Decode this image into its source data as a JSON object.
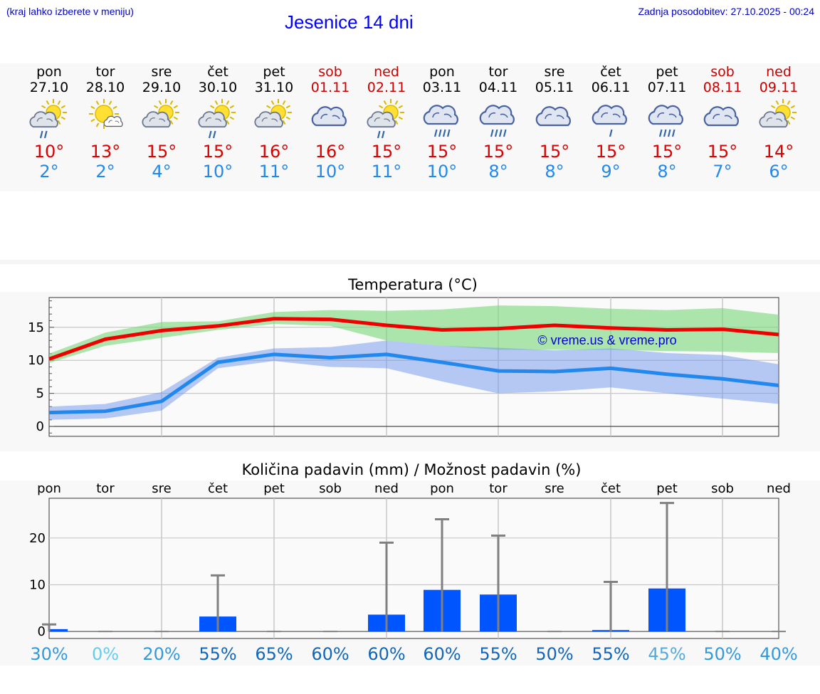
{
  "header": {
    "location_note": "(kraj lahko izberete v meniju)",
    "title": "Jesenice 14 dni",
    "last_update": "Zadnja posodobitev: 27.10.2025 - 00:24"
  },
  "colors": {
    "weekday": "#000000",
    "weekend": "#cc0000",
    "tmax": "#dd0000",
    "tmin": "#2288ee",
    "bar": "#0055ff"
  },
  "days": [
    {
      "name": "pon",
      "date": "27.10",
      "weekend": false,
      "icon": "sun-cloud-drizzle-icon",
      "tmax": "10°",
      "tmin": "2°"
    },
    {
      "name": "tor",
      "date": "28.10",
      "weekend": false,
      "icon": "sun-small-cloud-icon",
      "tmax": "13°",
      "tmin": "2°"
    },
    {
      "name": "sre",
      "date": "29.10",
      "weekend": false,
      "icon": "sun-cloud-icon",
      "tmax": "15°",
      "tmin": "4°"
    },
    {
      "name": "čet",
      "date": "30.10",
      "weekend": false,
      "icon": "sun-cloud-drizzle-icon",
      "tmax": "15°",
      "tmin": "10°"
    },
    {
      "name": "pet",
      "date": "31.10",
      "weekend": false,
      "icon": "sun-cloud-icon",
      "tmax": "16°",
      "tmin": "11°"
    },
    {
      "name": "sob",
      "date": "01.11",
      "weekend": true,
      "icon": "cloud-icon",
      "tmax": "16°",
      "tmin": "10°"
    },
    {
      "name": "ned",
      "date": "02.11",
      "weekend": true,
      "icon": "sun-cloud-drizzle-icon",
      "tmax": "15°",
      "tmin": "11°"
    },
    {
      "name": "pon",
      "date": "03.11",
      "weekend": false,
      "icon": "cloud-rain-icon",
      "tmax": "15°",
      "tmin": "10°"
    },
    {
      "name": "tor",
      "date": "04.11",
      "weekend": false,
      "icon": "cloud-rain-icon",
      "tmax": "15°",
      "tmin": "8°"
    },
    {
      "name": "sre",
      "date": "05.11",
      "weekend": false,
      "icon": "cloud-icon",
      "tmax": "15°",
      "tmin": "8°"
    },
    {
      "name": "čet",
      "date": "06.11",
      "weekend": false,
      "icon": "cloud-drizzle-icon",
      "tmax": "15°",
      "tmin": "9°"
    },
    {
      "name": "pet",
      "date": "07.11",
      "weekend": false,
      "icon": "cloud-rain-icon",
      "tmax": "15°",
      "tmin": "8°"
    },
    {
      "name": "sob",
      "date": "08.11",
      "weekend": true,
      "icon": "cloud-icon",
      "tmax": "15°",
      "tmin": "7°"
    },
    {
      "name": "ned",
      "date": "09.11",
      "weekend": true,
      "icon": "sun-cloud-icon",
      "tmax": "14°",
      "tmin": "6°"
    }
  ],
  "chart_data": [
    {
      "type": "line",
      "title": "Temperatura (°C)",
      "ylim": [
        -1.5,
        19.5
      ],
      "yticks": [
        "0",
        "5",
        "10",
        "15"
      ],
      "watermark": "© vreme.us & vreme.pro",
      "grid": true,
      "series": [
        {
          "name": "max",
          "values": [
            10.2,
            13.2,
            14.5,
            15.2,
            16.3,
            16.2,
            15.3,
            14.6,
            14.8,
            15.3,
            14.9,
            14.6,
            14.7,
            13.9
          ]
        },
        {
          "name": "min",
          "values": [
            2.1,
            2.3,
            3.8,
            9.7,
            10.9,
            10.4,
            10.9,
            9.7,
            8.4,
            8.3,
            8.8,
            7.9,
            7.2,
            6.2
          ]
        },
        {
          "name": "max-range-low",
          "values": [
            9.6,
            12.2,
            13.4,
            14.6,
            15.5,
            15.2,
            13.0,
            12.2,
            11.6,
            11.6,
            11.6,
            11.4,
            11.3,
            11.1
          ]
        },
        {
          "name": "max-range-high",
          "values": [
            11.0,
            14.2,
            15.8,
            15.9,
            17.3,
            17.6,
            17.5,
            17.7,
            18.3,
            18.2,
            17.8,
            17.6,
            17.9,
            16.9
          ]
        },
        {
          "name": "min-range-low",
          "values": [
            1.0,
            1.2,
            2.4,
            8.8,
            9.9,
            9.0,
            8.8,
            6.8,
            5.0,
            5.3,
            5.9,
            5.0,
            4.2,
            3.4
          ]
        },
        {
          "name": "min-range-high",
          "values": [
            3.0,
            3.4,
            5.2,
            10.4,
            11.8,
            12.0,
            13.0,
            12.2,
            11.9,
            11.5,
            11.8,
            11.1,
            10.8,
            9.4
          ]
        }
      ]
    },
    {
      "type": "bar",
      "title": "Količina padavin (mm) / Možnost padavin (%)",
      "categories": [
        "pon",
        "tor",
        "sre",
        "čet",
        "pet",
        "sob",
        "ned",
        "pon",
        "tor",
        "sre",
        "čet",
        "pet",
        "sob",
        "ned"
      ],
      "ylim": [
        -1.5,
        28.5
      ],
      "yticks": [
        "0",
        "10",
        "20"
      ],
      "values": [
        0.5,
        0,
        0,
        3.2,
        0,
        0,
        3.6,
        8.9,
        7.9,
        0,
        0.3,
        9.2,
        0,
        0
      ],
      "error_high": [
        1.5,
        0,
        0,
        12.0,
        0,
        0,
        19.0,
        24.0,
        20.5,
        0,
        10.6,
        27.5,
        0,
        0
      ],
      "probability": [
        "30%",
        "0%",
        "20%",
        "55%",
        "65%",
        "60%",
        "60%",
        "60%",
        "55%",
        "50%",
        "55%",
        "45%",
        "50%",
        "40%"
      ],
      "probability_colors": [
        "#3399dd",
        "#66ccee",
        "#3399dd",
        "#1166bb",
        "#1166bb",
        "#1166bb",
        "#1166bb",
        "#1166bb",
        "#1166bb",
        "#1166bb",
        "#1166bb",
        "#55aadd",
        "#3399dd",
        "#3399dd"
      ]
    }
  ]
}
